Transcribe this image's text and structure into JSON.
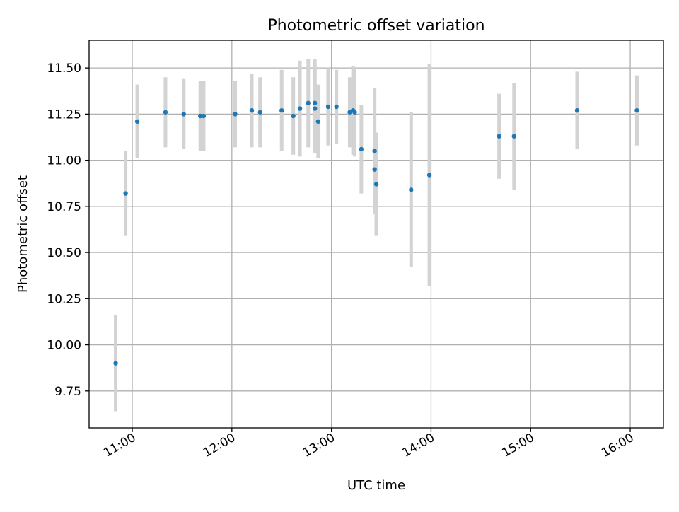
{
  "chart_data": {
    "type": "scatter",
    "title": "Photometric offset variation",
    "xlabel": "UTC time",
    "ylabel": "Photometric offset",
    "xlim": [
      "10:34",
      "16:20"
    ],
    "ylim": [
      9.55,
      11.65
    ],
    "x_ticks": [
      "11:00",
      "12:00",
      "13:00",
      "14:00",
      "15:00",
      "16:00"
    ],
    "y_ticks": [
      "9.75",
      "10.00",
      "10.25",
      "10.50",
      "10.75",
      "11.00",
      "11.25",
      "11.50"
    ],
    "grid": true,
    "point_color": "#1f77b4",
    "errorbar_color": "#d3d3d3",
    "points": [
      {
        "x": "10:50",
        "y": 9.9,
        "err": 0.26
      },
      {
        "x": "10:56",
        "y": 10.82,
        "err": 0.23
      },
      {
        "x": "11:03",
        "y": 11.21,
        "err": 0.2
      },
      {
        "x": "11:20",
        "y": 11.26,
        "err": 0.19
      },
      {
        "x": "11:31",
        "y": 11.25,
        "err": 0.19
      },
      {
        "x": "11:41",
        "y": 11.24,
        "err": 0.19
      },
      {
        "x": "11:43",
        "y": 11.24,
        "err": 0.19
      },
      {
        "x": "12:02",
        "y": 11.25,
        "err": 0.18
      },
      {
        "x": "12:12",
        "y": 11.27,
        "err": 0.2
      },
      {
        "x": "12:17",
        "y": 11.26,
        "err": 0.19
      },
      {
        "x": "12:30",
        "y": 11.27,
        "err": 0.22
      },
      {
        "x": "12:37",
        "y": 11.24,
        "err": 0.21
      },
      {
        "x": "12:41",
        "y": 11.28,
        "err": 0.26
      },
      {
        "x": "12:46",
        "y": 11.31,
        "err": 0.24
      },
      {
        "x": "12:50",
        "y": 11.31,
        "err": 0.24
      },
      {
        "x": "12:50",
        "y": 11.28,
        "err": 0.24
      },
      {
        "x": "12:52",
        "y": 11.21,
        "err": 0.2
      },
      {
        "x": "12:58",
        "y": 11.29,
        "err": 0.21
      },
      {
        "x": "13:03",
        "y": 11.29,
        "err": 0.2
      },
      {
        "x": "13:11",
        "y": 11.26,
        "err": 0.19
      },
      {
        "x": "13:13",
        "y": 11.27,
        "err": 0.24
      },
      {
        "x": "13:14",
        "y": 11.26,
        "err": 0.24
      },
      {
        "x": "13:18",
        "y": 11.06,
        "err": 0.24
      },
      {
        "x": "13:26",
        "y": 11.05,
        "err": 0.34
      },
      {
        "x": "13:26",
        "y": 10.95,
        "err": 0.19
      },
      {
        "x": "13:27",
        "y": 10.87,
        "err": 0.28
      },
      {
        "x": "13:48",
        "y": 10.84,
        "err": 0.42
      },
      {
        "x": "13:59",
        "y": 10.92,
        "err": 0.6
      },
      {
        "x": "14:41",
        "y": 11.13,
        "err": 0.23
      },
      {
        "x": "14:50",
        "y": 11.13,
        "err": 0.29
      },
      {
        "x": "15:28",
        "y": 11.27,
        "err": 0.21
      },
      {
        "x": "16:04",
        "y": 11.27,
        "err": 0.19
      }
    ]
  }
}
